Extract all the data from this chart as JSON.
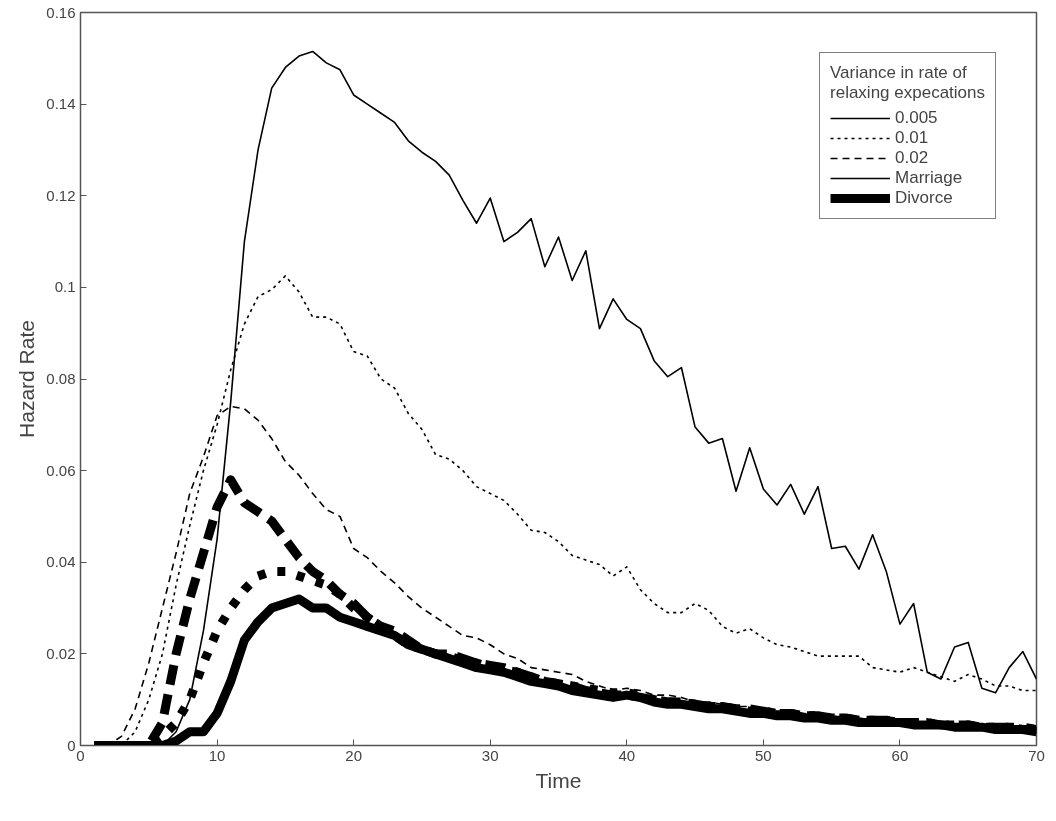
{
  "chart_data": {
    "type": "line",
    "xlabel": "Time",
    "ylabel": "Hazard Rate",
    "legend_title": "Variance in rate of\nrelaxing expecations",
    "x": [
      1,
      2,
      3,
      4,
      5,
      6,
      7,
      8,
      9,
      10,
      11,
      12,
      13,
      14,
      15,
      16,
      17,
      18,
      19,
      20,
      21,
      22,
      23,
      24,
      25,
      26,
      27,
      28,
      29,
      30,
      31,
      32,
      33,
      34,
      35,
      36,
      37,
      38,
      39,
      40,
      41,
      42,
      43,
      44,
      45,
      46,
      47,
      48,
      49,
      50,
      51,
      52,
      53,
      54,
      55,
      56,
      57,
      58,
      59,
      60,
      61,
      62,
      63,
      64,
      65,
      66,
      67,
      68,
      69,
      70
    ],
    "xlim": [
      0,
      70
    ],
    "xticks": [
      0,
      10,
      20,
      30,
      40,
      50,
      60,
      70
    ],
    "ylim": [
      0,
      0.16
    ],
    "yticks": [
      0,
      0.02,
      0.04,
      0.06,
      0.08,
      0.1,
      0.12,
      0.14,
      0.16
    ],
    "grid": false,
    "legend": "top right",
    "annotations": [
      "Marriage",
      "Divorce"
    ],
    "series": [
      {
        "name": "0.005",
        "line_style": "solid",
        "color": "#000000",
        "values": [
          0,
          0,
          0,
          0,
          0,
          0,
          0.003,
          0.01,
          0.025,
          0.045,
          0.075,
          0.11,
          0.13,
          0.1435,
          0.148,
          0.1505,
          0.1515,
          0.149,
          0.1475,
          0.142,
          0.14,
          0.138,
          0.136,
          0.132,
          0.1295,
          0.1275,
          0.1245,
          0.119,
          0.114,
          0.1195,
          0.11,
          0.112,
          0.115,
          0.1045,
          0.111,
          0.1015,
          0.108,
          0.091,
          0.0975,
          0.093,
          0.091,
          0.084,
          0.0805,
          0.0825,
          0.0695,
          0.066,
          0.067,
          0.0555,
          0.065,
          0.056,
          0.0525,
          0.057,
          0.0505,
          0.0565,
          0.043,
          0.0435,
          0.0385,
          0.046,
          0.038,
          0.0265,
          0.031,
          0.016,
          0.0145,
          0.0215,
          0.0225,
          0.0125,
          0.0115,
          0.017,
          0.0205,
          0.0145
        ]
      },
      {
        "name": "0.01",
        "line_style": "dotted",
        "color": "#000000",
        "values": [
          0,
          0,
          0,
          0.003,
          0.01,
          0.02,
          0.035,
          0.048,
          0.06,
          0.07,
          0.082,
          0.092,
          0.098,
          0.0995,
          0.1025,
          0.099,
          0.0935,
          0.0935,
          0.092,
          0.086,
          0.085,
          0.08,
          0.078,
          0.0725,
          0.069,
          0.0635,
          0.0625,
          0.06,
          0.0565,
          0.055,
          0.0535,
          0.0505,
          0.047,
          0.0465,
          0.0445,
          0.0415,
          0.0405,
          0.0395,
          0.037,
          0.039,
          0.034,
          0.031,
          0.029,
          0.029,
          0.031,
          0.0295,
          0.026,
          0.0245,
          0.0255,
          0.0235,
          0.022,
          0.0215,
          0.0205,
          0.0195,
          0.0195,
          0.0195,
          0.0195,
          0.017,
          0.0165,
          0.016,
          0.017,
          0.016,
          0.015,
          0.014,
          0.0155,
          0.0145,
          0.013,
          0.013,
          0.012,
          0.012
        ]
      },
      {
        "name": "0.02",
        "line_style": "dashed",
        "color": "#000000",
        "values": [
          0,
          0,
          0.002,
          0.008,
          0.018,
          0.03,
          0.042,
          0.055,
          0.063,
          0.072,
          0.074,
          0.0735,
          0.071,
          0.067,
          0.062,
          0.059,
          0.055,
          0.0515,
          0.05,
          0.043,
          0.041,
          0.038,
          0.0355,
          0.0325,
          0.03,
          0.028,
          0.026,
          0.024,
          0.0235,
          0.022,
          0.02,
          0.019,
          0.017,
          0.0165,
          0.016,
          0.0155,
          0.014,
          0.013,
          0.012,
          0.0125,
          0.012,
          0.011,
          0.011,
          0.0105,
          0.0095,
          0.0095,
          0.009,
          0.0085,
          0.0085,
          0.008,
          0.0075,
          0.0075,
          0.007,
          0.0065,
          0.0065,
          0.006,
          0.006,
          0.0055,
          0.0055,
          0.005,
          0.005,
          0.005,
          0.0045,
          0.0045,
          0.0045,
          0.004,
          0.004,
          0.004,
          0.004,
          0.0035
        ]
      },
      {
        "line_style": "solid",
        "color": "#000000",
        "values": [
          0,
          0,
          0,
          0,
          0,
          0,
          0.001,
          0.003,
          0.003,
          0.007,
          0.014,
          0.023,
          0.027,
          0.03,
          0.031,
          0.032,
          0.03,
          0.03,
          0.028,
          0.027,
          0.026,
          0.025,
          0.024,
          0.022,
          0.021,
          0.02,
          0.019,
          0.018,
          0.017,
          0.0165,
          0.016,
          0.015,
          0.014,
          0.0135,
          0.013,
          0.012,
          0.0115,
          0.011,
          0.0105,
          0.011,
          0.0105,
          0.0095,
          0.009,
          0.009,
          0.0085,
          0.008,
          0.008,
          0.0075,
          0.007,
          0.007,
          0.0065,
          0.0065,
          0.006,
          0.006,
          0.0055,
          0.0055,
          0.005,
          0.005,
          0.005,
          0.005,
          0.0045,
          0.0045,
          0.0045,
          0.004,
          0.004,
          0.004,
          0.0035,
          0.0035,
          0.0035,
          0.003
        ]
      },
      {
        "line_style": "dotted",
        "color": "#000000",
        "values": [
          0,
          0,
          0,
          0,
          0,
          0.002,
          0.005,
          0.01,
          0.018,
          0.025,
          0.03,
          0.034,
          0.037,
          0.038,
          0.038,
          0.037,
          0.036,
          0.035,
          0.033,
          0.03,
          0.028,
          0.026,
          0.024,
          0.022,
          0.021,
          0.02,
          0.0195,
          0.0185,
          0.018,
          0.017,
          0.0165,
          0.016,
          0.015,
          0.014,
          0.0135,
          0.013,
          0.0125,
          0.012,
          0.0115,
          0.0115,
          0.011,
          0.01,
          0.0095,
          0.0095,
          0.009,
          0.0085,
          0.0085,
          0.008,
          0.0075,
          0.0075,
          0.007,
          0.007,
          0.0065,
          0.0065,
          0.006,
          0.006,
          0.0055,
          0.0055,
          0.0055,
          0.005,
          0.005,
          0.005,
          0.0045,
          0.0045,
          0.0045,
          0.004,
          0.004,
          0.004,
          0.004,
          0.0035
        ]
      },
      {
        "line_style": "dashed",
        "color": "#000000",
        "values": [
          0,
          0,
          0,
          0,
          0,
          0.005,
          0.02,
          0.032,
          0.042,
          0.052,
          0.058,
          0.053,
          0.051,
          0.049,
          0.045,
          0.041,
          0.038,
          0.036,
          0.033,
          0.031,
          0.028,
          0.026,
          0.025,
          0.023,
          0.021,
          0.02,
          0.02,
          0.019,
          0.018,
          0.0175,
          0.017,
          0.016,
          0.015,
          0.014,
          0.0135,
          0.013,
          0.012,
          0.0115,
          0.011,
          0.011,
          0.0105,
          0.01,
          0.0095,
          0.0095,
          0.009,
          0.0085,
          0.0085,
          0.008,
          0.008,
          0.0075,
          0.007,
          0.007,
          0.0065,
          0.0065,
          0.006,
          0.006,
          0.0055,
          0.0055,
          0.0055,
          0.005,
          0.005,
          0.005,
          0.0045,
          0.0045,
          0.0045,
          0.004,
          0.004,
          0.004,
          0.0035,
          0.0035
        ]
      }
    ]
  }
}
